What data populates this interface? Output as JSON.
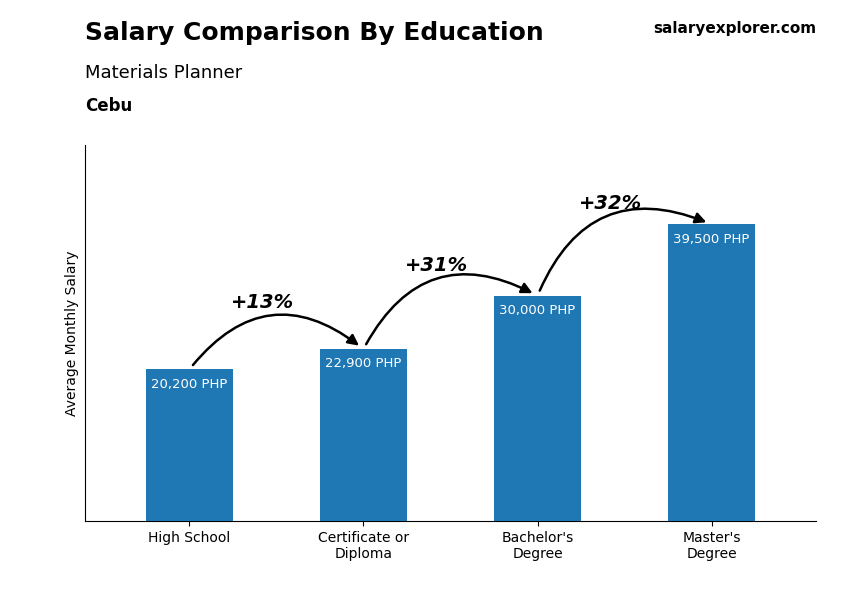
{
  "chart_data": {
    "type": "bar",
    "title": "Salary Comparison By Education",
    "subtitle": "Materials Planner",
    "location": "Cebu",
    "source": "salaryexplorer.com",
    "ylabel": "Average Monthly Salary",
    "categories": [
      "High School",
      "Certificate or\nDiploma",
      "Bachelor's\nDegree",
      "Master's\nDegree"
    ],
    "values": [
      20200,
      22900,
      30000,
      39500
    ],
    "value_labels": [
      "20,200 PHP",
      "22,900 PHP",
      "30,000 PHP",
      "39,500 PHP"
    ],
    "data_labels": true,
    "annotations": [
      "+13%",
      "+31%",
      "+32%"
    ],
    "ylim": [
      0,
      50000
    ],
    "tick_labels": "x",
    "grid": false
  }
}
